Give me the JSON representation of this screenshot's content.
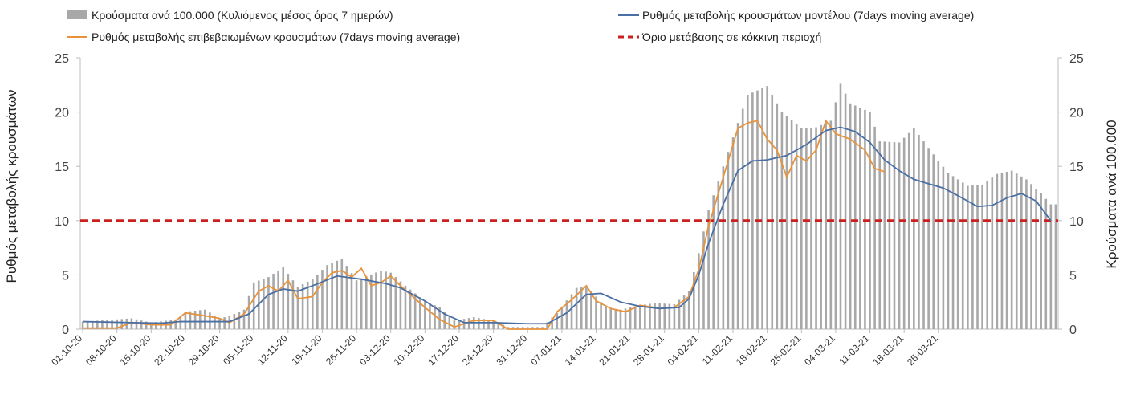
{
  "chart_data": {
    "type": "bar+line",
    "title": "",
    "y_left": {
      "label": "Ρυθμός μεταβολής κρουσμάτων",
      "lim": [
        0,
        25
      ],
      "ticks": [
        "0",
        "5",
        "10",
        "15",
        "20",
        "25"
      ]
    },
    "y_right": {
      "label": "Κρούσματα ανά 100.000",
      "lim": [
        0,
        25
      ],
      "ticks": [
        "0",
        "5",
        "10",
        "15",
        "20",
        "25"
      ]
    },
    "x_tick_labels": [
      "01-10-20",
      "08-10-20",
      "15-10-20",
      "22-10-20",
      "29-10-20",
      "05-11-20",
      "12-11-20",
      "19-11-20",
      "26-11-20",
      "03-12-20",
      "10-12-20",
      "17-12-20",
      "24-12-20",
      "31-12-20",
      "07-01-21",
      "14-01-21",
      "21-01-21",
      "28-01-21",
      "04-02-21",
      "11-02-21",
      "18-02-21",
      "25-02-21",
      "04-03-21",
      "11-03-21",
      "18-03-21",
      "25-03-21"
    ],
    "legend": {
      "bars": "Κρούσματα ανά 100.000 (Κυλιόμενος μέσος όρος 7 ημερών)",
      "model": "Ρυθμός μεταβολής κρουσμάτων μοντέλου (7days moving average)",
      "confirmed": "Ρυθμός μεταβολής επιβεβαιωμένων κρουσμάτων (7days moving average)",
      "threshold": "Όριο μετάβασης σε κόκκινη περιοχή"
    },
    "threshold_value": 10,
    "series_points": {
      "bars": [
        [
          0,
          0.7
        ],
        [
          7,
          0.9
        ],
        [
          10,
          1.0
        ],
        [
          14,
          0.6
        ],
        [
          19,
          0.9
        ],
        [
          21,
          1.6
        ],
        [
          25,
          1.8
        ],
        [
          28,
          1.0
        ],
        [
          30,
          1.2
        ],
        [
          33,
          1.8
        ],
        [
          35,
          4.3
        ],
        [
          38,
          4.8
        ],
        [
          41,
          5.7
        ],
        [
          44,
          3.9
        ],
        [
          47,
          4.6
        ],
        [
          50,
          5.9
        ],
        [
          53,
          6.5
        ],
        [
          56,
          4.5
        ],
        [
          61,
          5.4
        ],
        [
          63,
          5.2
        ],
        [
          66,
          4.0
        ],
        [
          70,
          2.6
        ],
        [
          73,
          2.0
        ],
        [
          76,
          0.8
        ],
        [
          80,
          1.1
        ],
        [
          84,
          0.8
        ],
        [
          87,
          0.2
        ],
        [
          91,
          0.2
        ],
        [
          94,
          0.2
        ],
        [
          97,
          1.5
        ],
        [
          101,
          3.8
        ],
        [
          103,
          4.0
        ],
        [
          107,
          2.0
        ],
        [
          110,
          1.8
        ],
        [
          114,
          2.2
        ],
        [
          117,
          2.4
        ],
        [
          121,
          2.3
        ],
        [
          124,
          3.5
        ],
        [
          126,
          7.0
        ],
        [
          128,
          11.0
        ],
        [
          131,
          15.0
        ],
        [
          134,
          19.0
        ],
        [
          136,
          21.6
        ],
        [
          140,
          22.4
        ],
        [
          143,
          20.0
        ],
        [
          147,
          18.5
        ],
        [
          150,
          18.6
        ],
        [
          153,
          19.2
        ],
        [
          155,
          22.6
        ],
        [
          157,
          20.8
        ],
        [
          161,
          20.0
        ],
        [
          163,
          17.3
        ],
        [
          167,
          17.2
        ],
        [
          170,
          18.5
        ],
        [
          174,
          16.1
        ],
        [
          177,
          14.4
        ],
        [
          181,
          13.2
        ],
        [
          184,
          13.3
        ],
        [
          187,
          14.3
        ],
        [
          190,
          14.6
        ],
        [
          193,
          13.8
        ],
        [
          196,
          12.5
        ],
        [
          198,
          11.5
        ]
      ],
      "model": [
        [
          0,
          0.7
        ],
        [
          10,
          0.6
        ],
        [
          16,
          0.55
        ],
        [
          20,
          0.7
        ],
        [
          30,
          0.7
        ],
        [
          34,
          1.4
        ],
        [
          38,
          3.2
        ],
        [
          41,
          3.7
        ],
        [
          44,
          3.5
        ],
        [
          47,
          4.0
        ],
        [
          52,
          4.9
        ],
        [
          57,
          4.6
        ],
        [
          62,
          4.2
        ],
        [
          65,
          3.8
        ],
        [
          70,
          2.6
        ],
        [
          74,
          1.4
        ],
        [
          78,
          0.6
        ],
        [
          84,
          0.6
        ],
        [
          91,
          0.5
        ],
        [
          95,
          0.5
        ],
        [
          99,
          1.5
        ],
        [
          103,
          3.2
        ],
        [
          106,
          3.3
        ],
        [
          110,
          2.5
        ],
        [
          114,
          2.1
        ],
        [
          118,
          1.9
        ],
        [
          122,
          2.0
        ],
        [
          124,
          2.8
        ],
        [
          126,
          5.0
        ],
        [
          128,
          7.9
        ],
        [
          131,
          11.5
        ],
        [
          134,
          14.6
        ],
        [
          137,
          15.5
        ],
        [
          140,
          15.6
        ],
        [
          144,
          16.0
        ],
        [
          148,
          17.0
        ],
        [
          152,
          18.3
        ],
        [
          155,
          18.6
        ],
        [
          158,
          18.2
        ],
        [
          161,
          17.2
        ],
        [
          164,
          15.6
        ],
        [
          167,
          14.6
        ],
        [
          170,
          13.8
        ],
        [
          173,
          13.4
        ],
        [
          176,
          13.0
        ],
        [
          179,
          12.3
        ],
        [
          183,
          11.3
        ],
        [
          186,
          11.4
        ],
        [
          189,
          12.1
        ],
        [
          192,
          12.5
        ],
        [
          195,
          11.8
        ],
        [
          198,
          10.0
        ]
      ],
      "confirmed": [
        [
          0,
          0.1
        ],
        [
          7,
          0.1
        ],
        [
          10,
          0.6
        ],
        [
          14,
          0.4
        ],
        [
          18,
          0.4
        ],
        [
          21,
          1.5
        ],
        [
          24,
          1.3
        ],
        [
          28,
          1.0
        ],
        [
          30,
          0.6
        ],
        [
          33,
          1.4
        ],
        [
          36,
          3.5
        ],
        [
          38,
          4.0
        ],
        [
          40,
          3.5
        ],
        [
          42,
          4.5
        ],
        [
          44,
          2.8
        ],
        [
          47,
          3.0
        ],
        [
          49,
          4.3
        ],
        [
          51,
          5.2
        ],
        [
          53,
          5.4
        ],
        [
          55,
          4.8
        ],
        [
          57,
          5.6
        ],
        [
          59,
          4.0
        ],
        [
          61,
          4.3
        ],
        [
          63,
          4.9
        ],
        [
          65,
          4.0
        ],
        [
          70,
          2.0
        ],
        [
          73,
          0.9
        ],
        [
          76,
          0.2
        ],
        [
          80,
          0.8
        ],
        [
          84,
          0.8
        ],
        [
          87,
          0.0
        ],
        [
          91,
          0.0
        ],
        [
          95,
          0.0
        ],
        [
          97,
          1.6
        ],
        [
          100,
          2.7
        ],
        [
          103,
          4.0
        ],
        [
          105,
          2.6
        ],
        [
          108,
          1.9
        ],
        [
          111,
          1.6
        ],
        [
          114,
          2.2
        ],
        [
          117,
          2.0
        ],
        [
          121,
          2.0
        ],
        [
          124,
          3.0
        ],
        [
          126,
          5.5
        ],
        [
          128,
          9.5
        ],
        [
          131,
          14.0
        ],
        [
          134,
          18.5
        ],
        [
          136,
          19.0
        ],
        [
          138,
          19.2
        ],
        [
          140,
          17.5
        ],
        [
          142,
          16.5
        ],
        [
          144,
          14.0
        ],
        [
          146,
          16.0
        ],
        [
          148,
          15.5
        ],
        [
          150,
          16.5
        ],
        [
          152,
          19.2
        ],
        [
          154,
          18.0
        ],
        [
          157,
          17.5
        ],
        [
          160,
          16.5
        ],
        [
          162,
          14.8
        ],
        [
          164,
          14.5
        ]
      ]
    },
    "colors": {
      "bars": "#a8a8a8",
      "model": "#4a6fa5",
      "confirmed": "#e8923a",
      "threshold": "#cc1f1f",
      "axis": "#bdbdbd",
      "tick": "#444444"
    }
  }
}
